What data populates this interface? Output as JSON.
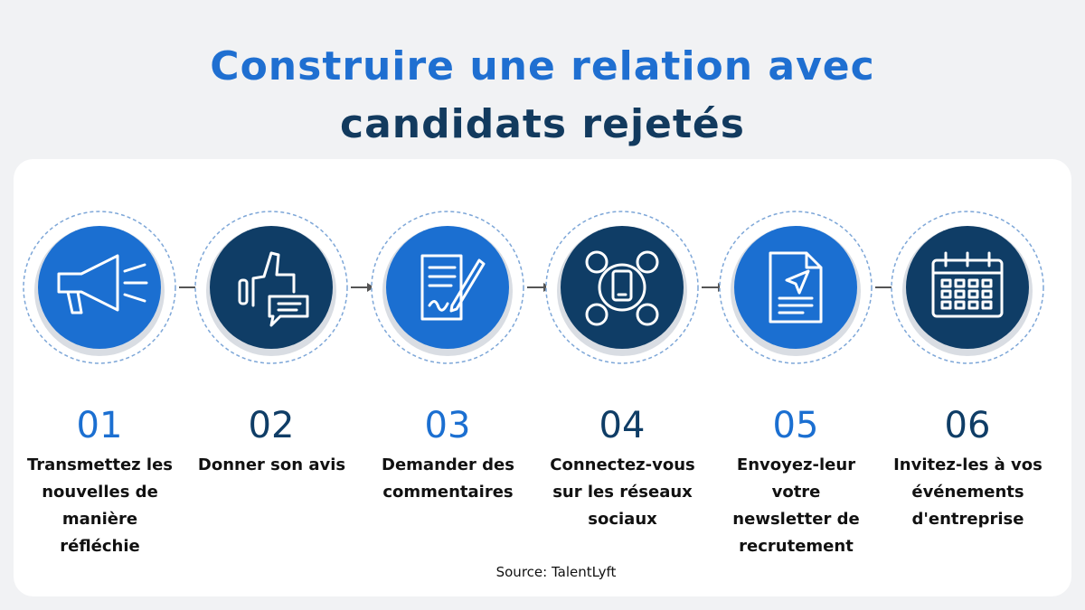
{
  "title": {
    "line1": "Construire une relation avec",
    "line2": "candidats rejetés"
  },
  "steps": [
    {
      "number": "01",
      "label": "Transmettez les nouvelles de manière réfléchie"
    },
    {
      "number": "02",
      "label": "Donner son avis"
    },
    {
      "number": "03",
      "label": "Demander des commentaires"
    },
    {
      "number": "04",
      "label": "Connectez-vous sur les réseaux sociaux"
    },
    {
      "number": "05",
      "label": "Envoyez-leur votre newsletter de recrutement"
    },
    {
      "number": "06",
      "label": "Invitez-les à vos événements d'entreprise"
    }
  ],
  "source": "Source: TalentLyft"
}
